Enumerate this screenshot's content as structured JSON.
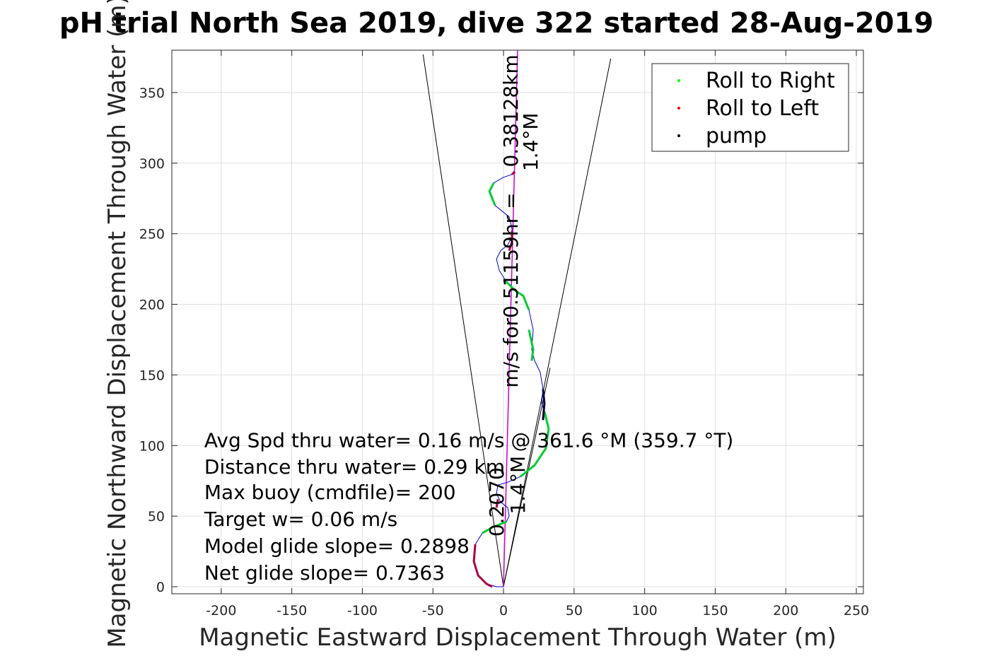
{
  "chart_data": {
    "type": "line",
    "title": "pH trial North Sea 2019, dive 322 started 28-Aug-2019",
    "xlabel": "Magnetic Eastward Displacement Through Water (m)",
    "ylabel": "Magnetic Northward Displacement Through Water (m)",
    "xlim": [
      -235,
      255
    ],
    "ylim": [
      -5,
      380
    ],
    "x_ticks": [
      -200,
      -150,
      -100,
      -50,
      0,
      50,
      100,
      150,
      200,
      250
    ],
    "y_ticks": [
      0,
      50,
      100,
      150,
      200,
      250,
      300,
      350
    ],
    "grid": true,
    "legend_placement": "top-right",
    "legend": [
      {
        "name": "Roll to Right",
        "color": "#00ff00"
      },
      {
        "name": "Roll to Left",
        "color": "#ff0000"
      },
      {
        "name": "pump",
        "color": "#000000"
      }
    ],
    "colors": {
      "track": "#0000cc",
      "green": "#00cc33",
      "left": "#aa0044",
      "heading": "#cc00cc",
      "cone": "#000000"
    },
    "track": {
      "x": [
        0,
        -5,
        -12,
        -18,
        -21,
        -20,
        -15,
        -8,
        -3,
        2,
        4,
        3,
        -2,
        -5,
        -4,
        3,
        12,
        22,
        30,
        32,
        29,
        27,
        28,
        26,
        22,
        20,
        21,
        18,
        14,
        8,
        2,
        -3,
        -5,
        -2,
        3,
        6,
        6,
        4,
        -6,
        -10,
        -7,
        0,
        6,
        8
      ],
      "y": [
        0,
        0,
        2,
        8,
        18,
        30,
        38,
        42,
        44,
        46,
        50,
        56,
        60,
        66,
        72,
        74,
        78,
        86,
        98,
        112,
        124,
        130,
        140,
        152,
        160,
        168,
        182,
        196,
        206,
        210,
        216,
        224,
        232,
        238,
        242,
        248,
        254,
        262,
        270,
        280,
        286,
        290,
        292,
        294
      ]
    },
    "green_segments": [
      {
        "x": [
          -15,
          -8,
          -3,
          2
        ],
        "y": [
          38,
          42,
          44,
          46
        ]
      },
      {
        "x": [
          12,
          22,
          30,
          32,
          29
        ],
        "y": [
          78,
          86,
          98,
          112,
          124
        ]
      },
      {
        "x": [
          20,
          21,
          18
        ],
        "y": [
          160,
          168,
          182
        ]
      },
      {
        "x": [
          18,
          14,
          8,
          2
        ],
        "y": [
          196,
          206,
          210,
          216
        ]
      },
      {
        "x": [
          -6,
          -10,
          -7
        ],
        "y": [
          270,
          280,
          286
        ]
      }
    ],
    "left_segments": [
      {
        "x": [
          -8,
          -12,
          -18,
          -21,
          -20
        ],
        "y": [
          0,
          2,
          8,
          18,
          30
        ]
      },
      {
        "x": [
          4,
          6,
          6
        ],
        "y": [
          238,
          244,
          252
        ]
      },
      {
        "x": [
          6,
          8
        ],
        "y": [
          292,
          294
        ]
      },
      {
        "x": [
          -5,
          -4
        ],
        "y": [
          56,
          62
        ]
      }
    ],
    "pump_segments": [
      {
        "x": [
          28,
          29,
          28
        ],
        "y": [
          118,
          130,
          140
        ]
      }
    ],
    "heading_line": {
      "x": [
        0,
        10
      ],
      "y": [
        0,
        380
      ]
    },
    "cone_lines": [
      {
        "x": [
          0,
          -57
        ],
        "y": [
          0,
          377
        ]
      },
      {
        "x": [
          0,
          76
        ],
        "y": [
          0,
          374
        ]
      },
      {
        "x": [
          0,
          33
        ],
        "y": [
          0,
          155
        ]
      }
    ],
    "annotations": [
      {
        "text": "Avg Spd thru water=  0.16 m/s @ 361.6 °M (359.7 °T)",
        "x": -212,
        "y": 99
      },
      {
        "text": "Distance thru water=  0.29 km",
        "x": -212,
        "y": 80
      },
      {
        "text": "Max buoy (cmdfile)= 200",
        "x": -212,
        "y": 62
      },
      {
        "text": "Target w= 0.06 m/s",
        "x": -212,
        "y": 43
      },
      {
        "text": "Model glide slope= 0.2898",
        "x": -212,
        "y": 24
      },
      {
        "text": "Net glide slope= 0.7363",
        "x": -212,
        "y": 5
      }
    ],
    "rotated_labels": [
      {
        "text": "0.38128km",
        "x": 10,
        "y": 337
      },
      {
        "text": "1.4°M",
        "x": 24,
        "y": 315
      },
      {
        "text": "m/s for0.51159hr =",
        "x": 10,
        "y": 210
      },
      {
        "text": "0.2070",
        "x": 0,
        "y": 60
      },
      {
        "text": "1.4°M",
        "x": 15,
        "y": 72
      }
    ]
  }
}
